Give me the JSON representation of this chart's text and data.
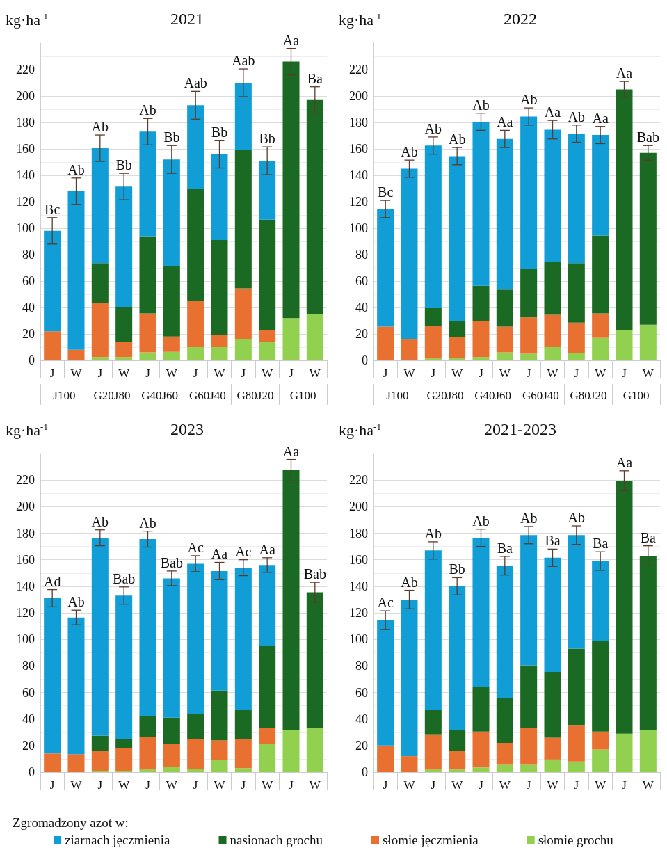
{
  "chart_data": [
    {
      "type": "bar",
      "stacked": true,
      "title": "2021",
      "ylabel": "kg·ha$^{-1}$",
      "categories": [
        "J",
        "W",
        "J",
        "W",
        "J",
        "W",
        "J",
        "W",
        "J",
        "W",
        "J",
        "W"
      ],
      "annotations": [
        "J100",
        "G20J80",
        "G40J60",
        "G60J40",
        "G80J20",
        "G100"
      ],
      "ylim": [
        0,
        240
      ],
      "yticks": [
        0,
        20,
        40,
        60,
        80,
        100,
        120,
        140,
        160,
        180,
        200,
        220
      ],
      "grid": "y",
      "series": [
        {
          "color": "#92d050",
          "values": [
            null,
            null,
            2.5,
            2.5,
            6,
            6.5,
            10,
            10,
            16,
            14,
            32,
            35
          ]
        },
        {
          "color": "#e87132",
          "values": [
            22,
            8,
            41,
            11.5,
            29.5,
            11.5,
            35,
            9.5,
            38.5,
            9,
            null,
            null
          ]
        },
        {
          "color": "#1b6a23",
          "values": [
            null,
            null,
            30,
            26,
            58.5,
            53,
            85,
            71.5,
            104.5,
            83.5,
            194,
            162
          ],
          "errors": [
            null,
            null,
            null,
            null,
            null,
            null,
            null,
            null,
            null,
            null,
            10,
            10
          ],
          "value_labels": [
            null,
            null,
            null,
            null,
            null,
            null,
            null,
            null,
            null,
            null,
            "Aa",
            "Ba"
          ]
        },
        {
          "color": "#119dd6",
          "values": [
            76,
            120,
            87,
            91.5,
            79,
            81,
            63,
            65,
            51,
            44.5,
            null,
            null
          ],
          "errors": [
            10,
            10,
            10,
            10,
            10,
            10.5,
            10.5,
            10.5,
            10.5,
            10.5,
            null,
            null
          ],
          "value_labels": [
            "Bc",
            "Ab",
            "Ab",
            "Bb",
            "Ab",
            "Bb",
            "Aab",
            "Bb",
            "Aab",
            "Bb",
            null,
            null
          ]
        }
      ]
    },
    {
      "type": "bar",
      "stacked": true,
      "title": "2022",
      "ylabel": "kg·ha$^{-1}$",
      "categories": [
        "J",
        "W",
        "J",
        "W",
        "J",
        "W",
        "J",
        "W",
        "J",
        "W",
        "J",
        "W"
      ],
      "annotations": [
        "J100",
        "G20J80",
        "G40J60",
        "G60J40",
        "G80J20",
        "G100"
      ],
      "ylim": [
        0,
        240
      ],
      "yticks": [
        0,
        20,
        40,
        60,
        80,
        100,
        120,
        140,
        160,
        180,
        200,
        220
      ],
      "grid": "y",
      "series": [
        {
          "color": "#92d050",
          "values": [
            null,
            null,
            1.5,
            2,
            2.5,
            6,
            5,
            10,
            5.5,
            17,
            23,
            27
          ]
        },
        {
          "color": "#e87132",
          "values": [
            25.5,
            16,
            24.5,
            15.5,
            27.5,
            19.5,
            27.5,
            24.5,
            23,
            18.5,
            null,
            null
          ]
        },
        {
          "color": "#1b6a23",
          "values": [
            null,
            null,
            13.5,
            12,
            26.5,
            28,
            37,
            40,
            45,
            59,
            182,
            130
          ],
          "errors": [
            null,
            null,
            null,
            null,
            null,
            null,
            null,
            null,
            null,
            null,
            6,
            5.5
          ],
          "value_labels": [
            null,
            null,
            null,
            null,
            null,
            null,
            null,
            null,
            null,
            null,
            "Aa",
            "Bab"
          ]
        },
        {
          "color": "#119dd6",
          "values": [
            89,
            129,
            123,
            125,
            124,
            114,
            115,
            100,
            98,
            76,
            null,
            null
          ],
          "errors": [
            6.5,
            6.5,
            6.5,
            6.5,
            6.5,
            6.5,
            6.5,
            7,
            6.5,
            6.5,
            null,
            null
          ],
          "value_labels": [
            "Bc",
            "Ab",
            "Ab",
            "Ab",
            "Ab",
            "Aa",
            "Ab",
            "Aa",
            "Ab",
            "Aa",
            null,
            null
          ]
        }
      ]
    },
    {
      "type": "bar",
      "stacked": true,
      "title": "2023",
      "ylabel": "kg·ha$^{-1}$",
      "categories": [
        "J",
        "W",
        "J",
        "W",
        "J",
        "W",
        "J",
        "W",
        "J",
        "W",
        "J",
        "W"
      ],
      "ylim": [
        0,
        240
      ],
      "yticks": [
        0,
        20,
        40,
        60,
        80,
        100,
        120,
        140,
        160,
        180,
        200,
        220
      ],
      "grid": "y",
      "legend": "bottom",
      "legend_title": "Zgromadzony azot w:",
      "series": [
        {
          "name": "słomie grochu",
          "color": "#92d050",
          "values": [
            null,
            null,
            1,
            1,
            2,
            4,
            2.5,
            9,
            3,
            21,
            32,
            33
          ]
        },
        {
          "name": "słomie jęczmienia",
          "color": "#e87132",
          "values": [
            14,
            13.5,
            15,
            17,
            24.5,
            17.5,
            22.5,
            15,
            22,
            12,
            null,
            null
          ]
        },
        {
          "name": "nasionach grochu",
          "color": "#1b6a23",
          "values": [
            null,
            null,
            11.5,
            7,
            16,
            19.5,
            18.5,
            37.5,
            22,
            62,
            195.5,
            102.5
          ],
          "errors": [
            null,
            null,
            null,
            null,
            null,
            null,
            null,
            null,
            null,
            null,
            8,
            7.5
          ],
          "value_labels": [
            null,
            null,
            null,
            null,
            null,
            null,
            null,
            null,
            null,
            null,
            "Aa",
            "Bab"
          ]
        },
        {
          "name": "ziarnach jęczmienia",
          "color": "#119dd6",
          "values": [
            117,
            103,
            149,
            108,
            133,
            105,
            113.5,
            90,
            107,
            61,
            null,
            null
          ],
          "errors": [
            6.5,
            5.5,
            6,
            6.5,
            6,
            5.5,
            6,
            6.5,
            6,
            5.5,
            null,
            null
          ],
          "value_labels": [
            "Ad",
            "Ab",
            "Ab",
            "Bab",
            "Ab",
            "Bab",
            "Ac",
            "Aa",
            "Ac",
            "Aa",
            null,
            null
          ]
        }
      ]
    },
    {
      "type": "bar",
      "stacked": true,
      "title": "2021-2023",
      "ylabel": "kg·ha$^{-1}$",
      "categories": [
        "J",
        "W",
        "J",
        "W",
        "J",
        "W",
        "J",
        "W",
        "J",
        "W",
        "J",
        "W"
      ],
      "ylim": [
        0,
        240
      ],
      "yticks": [
        0,
        20,
        40,
        60,
        80,
        100,
        120,
        140,
        160,
        180,
        200,
        220
      ],
      "grid": "y",
      "series": [
        {
          "color": "#92d050",
          "values": [
            null,
            null,
            2,
            2,
            3.5,
            5.5,
            5.5,
            9.5,
            8,
            17,
            29,
            31.5
          ]
        },
        {
          "color": "#e87132",
          "values": [
            20,
            12,
            26.5,
            14,
            27,
            16.5,
            28,
            16.5,
            27.5,
            13.5,
            null,
            null
          ]
        },
        {
          "color": "#1b6a23",
          "values": [
            null,
            null,
            18.5,
            15.5,
            33.5,
            33.5,
            47,
            49.5,
            57.5,
            68.5,
            190.5,
            131.5
          ],
          "errors": [
            null,
            null,
            null,
            null,
            null,
            null,
            null,
            null,
            null,
            null,
            7.5,
            7.5
          ],
          "value_labels": [
            null,
            null,
            null,
            null,
            null,
            null,
            null,
            null,
            null,
            null,
            "Aa",
            "Ba"
          ]
        },
        {
          "color": "#119dd6",
          "values": [
            94.5,
            118,
            120,
            108.5,
            112.5,
            100,
            98,
            86,
            85.5,
            60,
            null,
            null
          ],
          "errors": [
            7,
            7,
            6.5,
            6.5,
            6.5,
            7,
            6.5,
            6.5,
            7,
            7,
            null,
            null
          ],
          "value_labels": [
            "Ac",
            "Ab",
            "Ab",
            "Bb",
            "Ab",
            "Ba",
            "Ab",
            "Ba",
            "Ab",
            "Ba",
            null,
            null
          ]
        }
      ]
    }
  ]
}
